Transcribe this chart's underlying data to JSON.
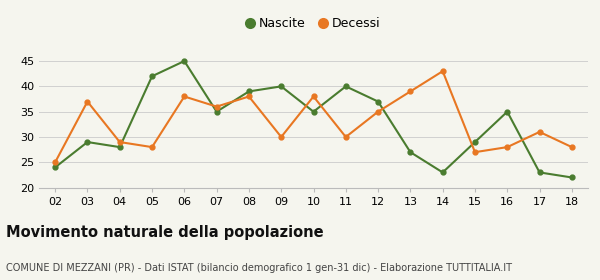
{
  "years": [
    "02",
    "03",
    "04",
    "05",
    "06",
    "07",
    "08",
    "09",
    "10",
    "11",
    "12",
    "13",
    "14",
    "15",
    "16",
    "17",
    "18"
  ],
  "nascite": [
    24,
    29,
    28,
    42,
    45,
    35,
    39,
    40,
    35,
    40,
    37,
    27,
    23,
    29,
    35,
    23,
    22
  ],
  "decessi": [
    25,
    37,
    29,
    28,
    38,
    36,
    38,
    30,
    38,
    30,
    35,
    39,
    43,
    27,
    28,
    31,
    28
  ],
  "nascite_color": "#4a7c2f",
  "decessi_color": "#e87722",
  "bg_color": "#f5f5ee",
  "ylim": [
    20,
    46
  ],
  "yticks": [
    20,
    25,
    30,
    35,
    40,
    45
  ],
  "title": "Movimento naturale della popolazione",
  "subtitle": "COMUNE DI MEZZANI (PR) - Dati ISTAT (bilancio demografico 1 gen-31 dic) - Elaborazione TUTTITALIA.IT",
  "legend_nascite": "Nascite",
  "legend_decessi": "Decessi",
  "title_fontsize": 10.5,
  "subtitle_fontsize": 7.0,
  "tick_fontsize": 8,
  "legend_fontsize": 9
}
